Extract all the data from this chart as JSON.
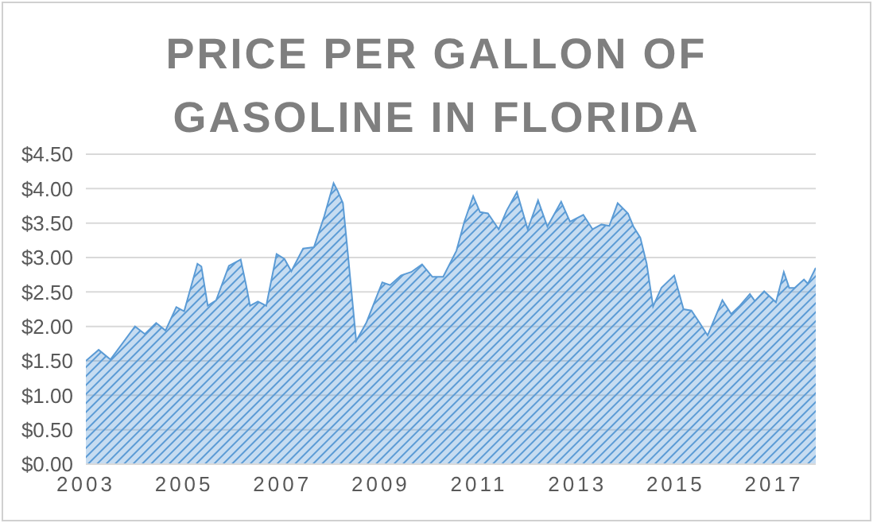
{
  "chart_data": {
    "type": "area",
    "title": "PRICE PER GALLON OF GASOLINE IN FLORIDA",
    "x": [
      2003.0,
      2003.26,
      2003.5,
      2004.0,
      2004.2,
      2004.43,
      2004.62,
      2004.84,
      2005.0,
      2005.27,
      2005.35,
      2005.48,
      2005.65,
      2005.91,
      2006.15,
      2006.26,
      2006.34,
      2006.5,
      2006.67,
      2006.88,
      2007.04,
      2007.18,
      2007.42,
      2007.64,
      2007.85,
      2008.04,
      2008.12,
      2008.23,
      2008.33,
      2008.5,
      2008.71,
      2009.03,
      2009.19,
      2009.41,
      2009.62,
      2009.84,
      2010.05,
      2010.27,
      2010.54,
      2010.7,
      2010.88,
      2011.02,
      2011.18,
      2011.4,
      2011.56,
      2011.77,
      2011.99,
      2012.2,
      2012.39,
      2012.67,
      2012.85,
      2013.12,
      2013.31,
      2013.49,
      2013.65,
      2013.82,
      2014.03,
      2014.14,
      2014.28,
      2014.41,
      2014.54,
      2014.71,
      2014.97,
      2015.16,
      2015.32,
      2015.48,
      2015.65,
      2015.95,
      2016.13,
      2016.29,
      2016.51,
      2016.61,
      2016.8,
      2017.04,
      2017.2,
      2017.31,
      2017.42,
      2017.61,
      2017.69,
      2017.85
    ],
    "series": [
      {
        "color": "#5b9bd5",
        "values": [
          1.5,
          1.66,
          1.52,
          2.0,
          1.89,
          2.05,
          1.94,
          2.28,
          2.22,
          2.91,
          2.87,
          2.3,
          2.38,
          2.88,
          2.97,
          2.6,
          2.3,
          2.36,
          2.3,
          3.05,
          2.98,
          2.8,
          3.13,
          3.15,
          3.6,
          4.08,
          3.97,
          3.79,
          3.06,
          1.79,
          2.06,
          2.64,
          2.6,
          2.74,
          2.79,
          2.9,
          2.72,
          2.72,
          3.1,
          3.52,
          3.89,
          3.66,
          3.64,
          3.41,
          3.68,
          3.95,
          3.41,
          3.83,
          3.45,
          3.81,
          3.52,
          3.62,
          3.41,
          3.48,
          3.46,
          3.79,
          3.64,
          3.45,
          3.29,
          2.91,
          2.29,
          2.56,
          2.74,
          2.25,
          2.23,
          2.06,
          1.87,
          2.38,
          2.18,
          2.29,
          2.47,
          2.37,
          2.51,
          2.35,
          2.79,
          2.56,
          2.56,
          2.68,
          2.62,
          2.85
        ]
      }
    ],
    "xlim": [
      2003,
      2017.85
    ],
    "xticks": [
      2003,
      2005,
      2007,
      2009,
      2011,
      2013,
      2015,
      2017
    ],
    "ylim": [
      0,
      4.5
    ],
    "yticks": [
      {
        "value": 0,
        "label": "$0.00"
      },
      {
        "value": 0.5,
        "label": "$0.50"
      },
      {
        "value": 1,
        "label": "$1.00"
      },
      {
        "value": 1.5,
        "label": "$1.50"
      },
      {
        "value": 2,
        "label": "$2.00"
      },
      {
        "value": 2.5,
        "label": "$2.50"
      },
      {
        "value": 3,
        "label": "$3.00"
      },
      {
        "value": 3.5,
        "label": "$3.50"
      },
      {
        "value": 4,
        "label": "$4.00"
      },
      {
        "value": 4.5,
        "label": "$4.50"
      }
    ],
    "grid": "y",
    "legend": false
  }
}
